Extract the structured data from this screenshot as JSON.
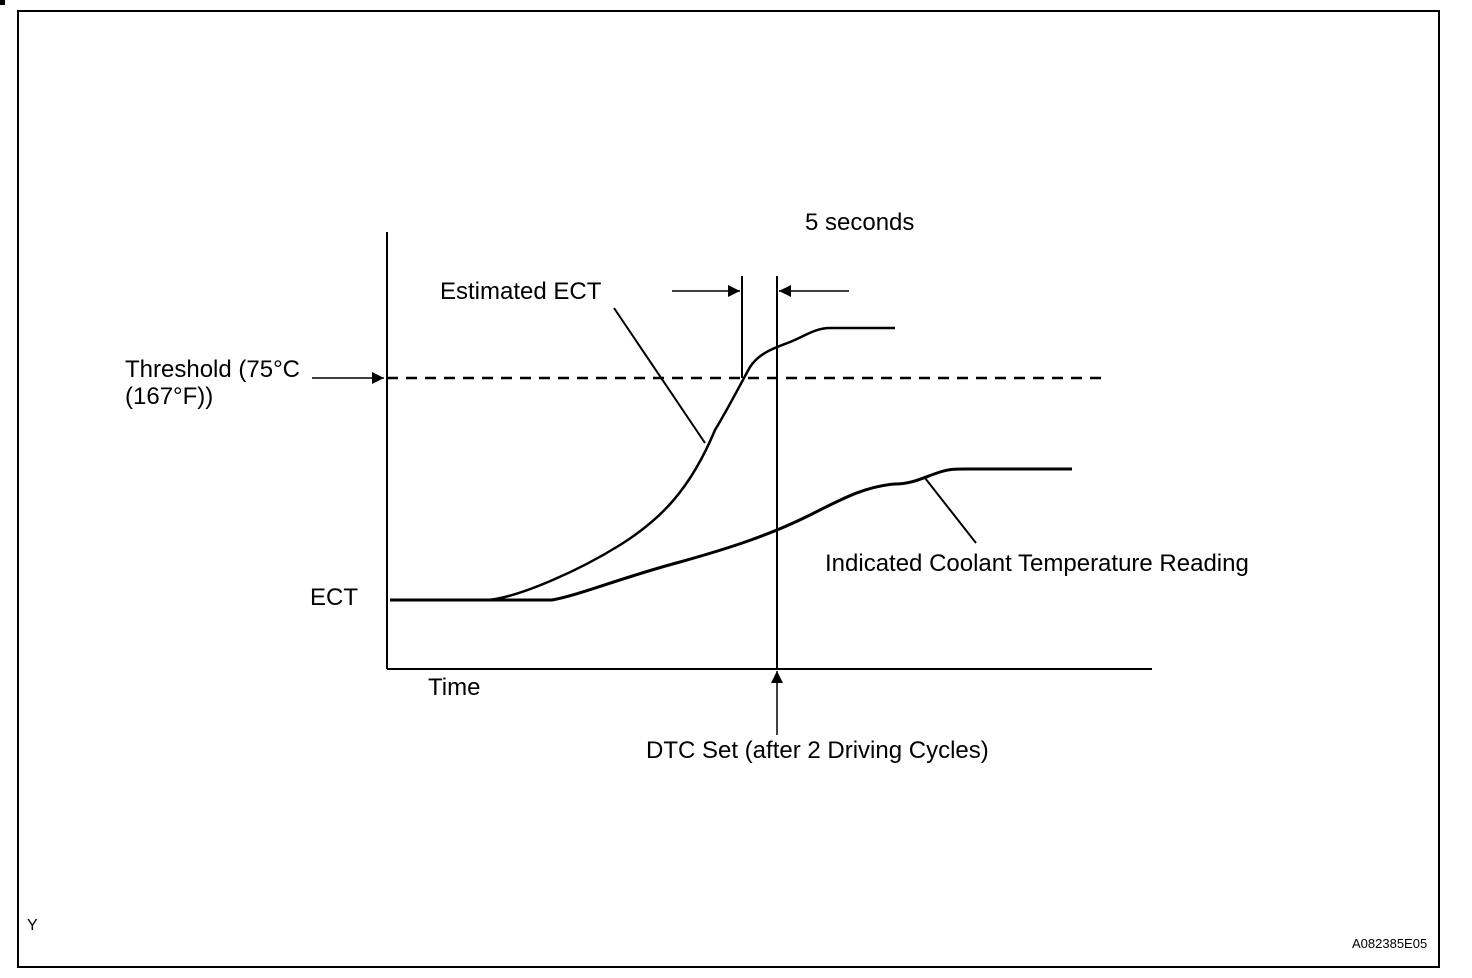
{
  "labels": {
    "five_seconds": "5 seconds",
    "estimated_ect": "Estimated ECT",
    "threshold_line1": "Threshold  (75°C",
    "threshold_line2": "(167°F))",
    "ect": "ECT",
    "time": "Time",
    "indicated_reading": "Indicated Coolant Temperature Reading",
    "dtc_set": "DTC Set (after 2 Driving Cycles)",
    "corner_y": "Y",
    "figure_id": "A082385E05"
  },
  "colors": {
    "stroke": "#000000",
    "background": "#ffffff"
  }
}
